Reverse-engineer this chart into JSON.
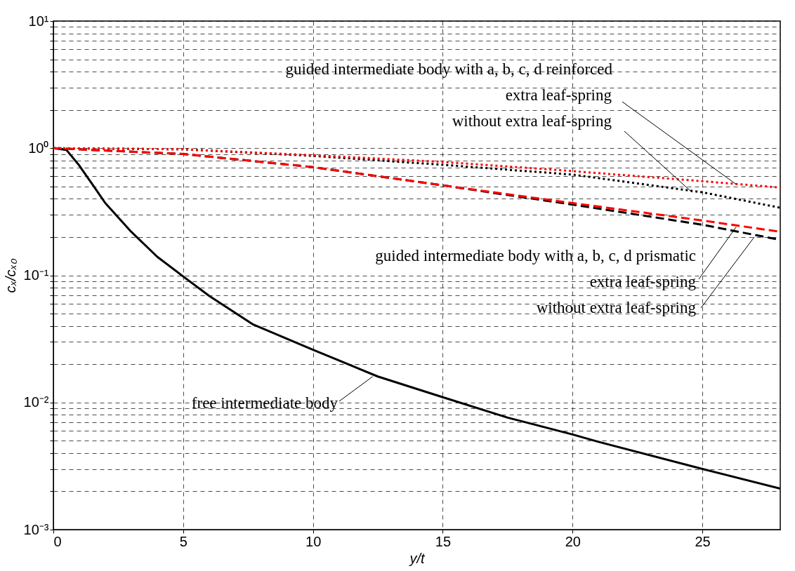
{
  "chart_data": {
    "type": "line",
    "xlabel": "y/t",
    "ylabel": "cₓ/cₓ₀",
    "log": "y",
    "grid": true,
    "xlim": [
      0,
      28
    ],
    "xticks": [
      0,
      5,
      10,
      15,
      20,
      25
    ],
    "ylim": [
      0.001,
      10
    ],
    "yticks": [
      {
        "value": 0.001,
        "label": "10⁻³"
      },
      {
        "value": 0.002,
        "label": null
      },
      {
        "value": 0.003,
        "label": null
      },
      {
        "value": 0.004,
        "label": null
      },
      {
        "value": 0.005,
        "label": null
      },
      {
        "value": 0.006,
        "label": null
      },
      {
        "value": 0.007,
        "label": null
      },
      {
        "value": 0.008,
        "label": null
      },
      {
        "value": 0.009,
        "label": null
      },
      {
        "value": 0.01,
        "label": "10⁻²"
      },
      {
        "value": 0.02,
        "label": null
      },
      {
        "value": 0.03,
        "label": null
      },
      {
        "value": 0.04,
        "label": null
      },
      {
        "value": 0.05,
        "label": null
      },
      {
        "value": 0.06,
        "label": null
      },
      {
        "value": 0.07,
        "label": null
      },
      {
        "value": 0.08,
        "label": null
      },
      {
        "value": 0.09,
        "label": null
      },
      {
        "value": 0.1,
        "label": "10⁻¹"
      },
      {
        "value": 0.2,
        "label": null
      },
      {
        "value": 0.3,
        "label": null
      },
      {
        "value": 0.4,
        "label": null
      },
      {
        "value": 0.5,
        "label": null
      },
      {
        "value": 0.6,
        "label": null
      },
      {
        "value": 0.7,
        "label": null
      },
      {
        "value": 0.8,
        "label": null
      },
      {
        "value": 0.9,
        "label": null
      },
      {
        "value": 1,
        "label": "10⁰"
      },
      {
        "value": 2,
        "label": null
      },
      {
        "value": 3,
        "label": null
      },
      {
        "value": 4,
        "label": null
      },
      {
        "value": 5,
        "label": null
      },
      {
        "value": 6,
        "label": null
      },
      {
        "value": 7,
        "label": null
      },
      {
        "value": 8,
        "label": null
      },
      {
        "value": 9,
        "label": null
      },
      {
        "value": 10,
        "label": "10¹"
      }
    ],
    "series": [
      {
        "color": "#000000",
        "line_style": "solid",
        "x": [
          0,
          0.5,
          1,
          1.5,
          2,
          3,
          4,
          5,
          6,
          7.7,
          10,
          12.5,
          15,
          17.5,
          20,
          21,
          25,
          28
        ],
        "values": [
          1,
          0.97,
          0.73,
          0.52,
          0.37,
          0.22,
          0.14,
          0.098,
          0.069,
          0.041,
          0.026,
          0.016,
          0.011,
          0.0076,
          0.0056,
          0.0049,
          0.003,
          0.0021
        ]
      },
      {
        "color": "#000000",
        "line_style": "dashed",
        "x": [
          0,
          5,
          10,
          15,
          20,
          25,
          28
        ],
        "values": [
          1,
          0.9,
          0.71,
          0.51,
          0.36,
          0.25,
          0.19
        ]
      },
      {
        "color": "#ff0000",
        "line_style": "dashed",
        "x": [
          0,
          5,
          10,
          15,
          20,
          25,
          28
        ],
        "values": [
          1,
          0.9,
          0.71,
          0.51,
          0.37,
          0.27,
          0.22
        ]
      },
      {
        "color": "#000000",
        "line_style": "dotted",
        "x": [
          0,
          5,
          10,
          15,
          20,
          25,
          28
        ],
        "values": [
          1,
          0.98,
          0.87,
          0.74,
          0.62,
          0.45,
          0.34
        ]
      },
      {
        "color": "#ff0000",
        "line_style": "dotted",
        "x": [
          0,
          5,
          10,
          15,
          20,
          25,
          28
        ],
        "values": [
          1,
          0.98,
          0.88,
          0.78,
          0.66,
          0.55,
          0.49
        ]
      }
    ],
    "annotations": [
      "guided intermediate body with a, b, c, d reinforced",
      {
        "text": "extra leaf-spring",
        "x": 26.3,
        "y": 0.52
      },
      {
        "text": "without extra leaf-spring",
        "x": 24.6,
        "y": 0.45
      },
      "guided intermediate body with a, b, c, d prismatic",
      {
        "text": "extra leaf-spring",
        "x": 26.3,
        "y": 0.24
      },
      {
        "text": "without extra leaf-spring",
        "x": 27.0,
        "y": 0.2
      },
      {
        "text": "free intermediate body",
        "x": 12.3,
        "y": 0.016
      }
    ]
  }
}
